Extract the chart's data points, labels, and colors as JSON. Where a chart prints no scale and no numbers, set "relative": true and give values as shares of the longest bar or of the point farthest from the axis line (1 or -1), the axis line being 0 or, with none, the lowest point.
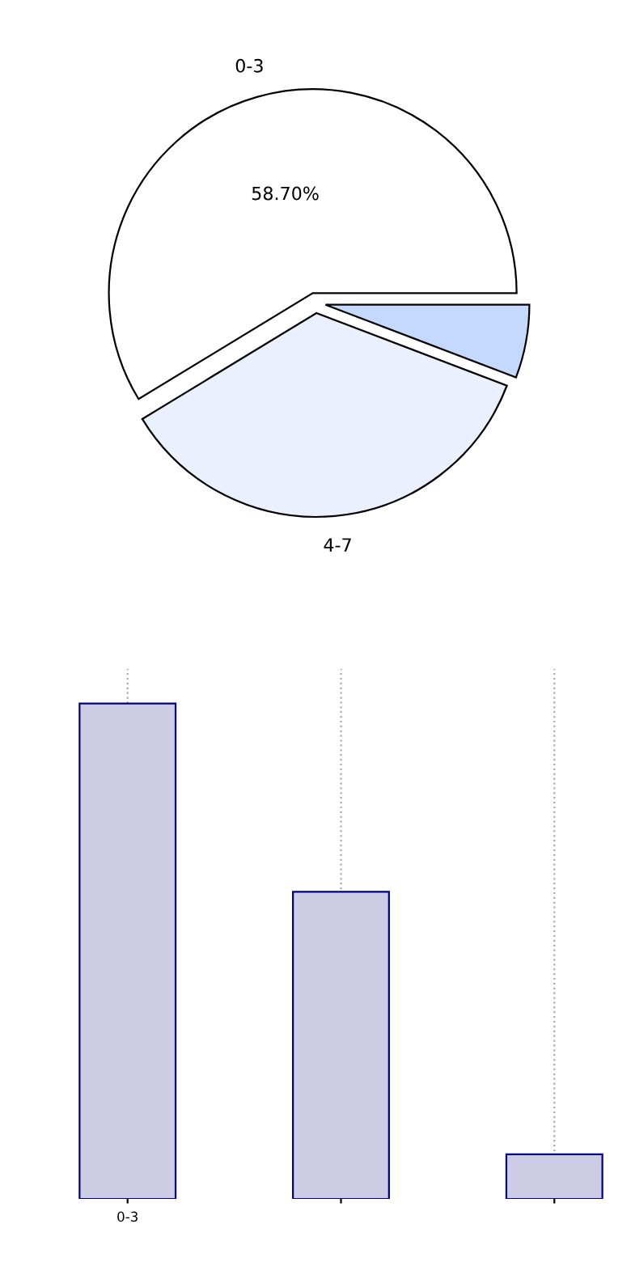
{
  "chart_data": [
    {
      "type": "pie",
      "categories": [
        "0-3",
        "4-7",
        null
      ],
      "values": [
        58.7,
        35.5,
        5.8
      ],
      "colors": [
        "#ffffff",
        "#eaf0fd",
        "#c5d8fe"
      ],
      "value_labels": [
        "58.70%",
        null,
        null
      ]
    },
    {
      "type": "bar",
      "categories": [
        "0-3",
        null,
        null
      ],
      "values": [
        1,
        0.62,
        0.09
      ],
      "relative": true,
      "color": "#ccccE5",
      "grid": "x"
    }
  ]
}
